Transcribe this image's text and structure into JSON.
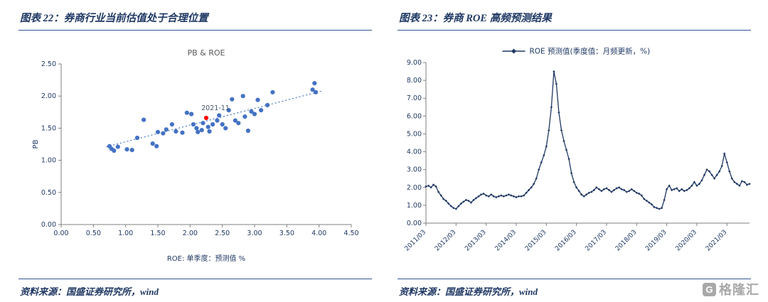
{
  "figures": [
    {
      "label": "图表 22：",
      "title": "券商行业当前估值处于合理位置",
      "source": "资料来源：国盛证券研究所，wind"
    },
    {
      "label": "图表 23：",
      "title": "券商 ROE 高频预测结果",
      "source": "资料来源：国盛证券研究所，wind"
    }
  ],
  "watermark": {
    "logo_letter": "G",
    "text": "格隆汇"
  },
  "chart_data": [
    {
      "type": "scatter",
      "title": "PB & ROE",
      "xlabel": "ROE: 单季度：预测值 %",
      "ylabel": "PB",
      "xlim": [
        0,
        4.5
      ],
      "ylim": [
        0,
        2.5
      ],
      "xticks": [
        0,
        0.5,
        1.0,
        1.5,
        2.0,
        2.5,
        3.0,
        3.5,
        4.0,
        4.5
      ],
      "yticks": [
        0,
        0.5,
        1.0,
        1.5,
        2.0,
        2.5
      ],
      "point_color": "#4472c4",
      "points": [
        [
          0.75,
          1.22
        ],
        [
          0.78,
          1.18
        ],
        [
          0.82,
          1.15
        ],
        [
          0.88,
          1.21
        ],
        [
          1.02,
          1.17
        ],
        [
          1.1,
          1.16
        ],
        [
          1.18,
          1.35
        ],
        [
          1.28,
          1.63
        ],
        [
          1.42,
          1.26
        ],
        [
          1.48,
          1.22
        ],
        [
          1.5,
          1.44
        ],
        [
          1.58,
          1.42
        ],
        [
          1.63,
          1.48
        ],
        [
          1.72,
          1.56
        ],
        [
          1.78,
          1.45
        ],
        [
          1.88,
          1.43
        ],
        [
          1.95,
          1.74
        ],
        [
          2.02,
          1.72
        ],
        [
          2.05,
          1.56
        ],
        [
          2.1,
          1.5
        ],
        [
          2.12,
          1.44
        ],
        [
          2.18,
          1.47
        ],
        [
          2.2,
          1.58
        ],
        [
          2.28,
          1.52
        ],
        [
          2.3,
          1.45
        ],
        [
          2.35,
          1.56
        ],
        [
          2.42,
          1.62
        ],
        [
          2.45,
          1.7
        ],
        [
          2.5,
          1.56
        ],
        [
          2.55,
          1.5
        ],
        [
          2.6,
          1.78
        ],
        [
          2.65,
          1.95
        ],
        [
          2.7,
          1.62
        ],
        [
          2.75,
          1.58
        ],
        [
          2.82,
          2.0
        ],
        [
          2.85,
          1.68
        ],
        [
          2.9,
          1.46
        ],
        [
          2.95,
          1.76
        ],
        [
          3.0,
          1.72
        ],
        [
          3.05,
          1.94
        ],
        [
          3.1,
          1.78
        ],
        [
          3.2,
          1.86
        ],
        [
          3.28,
          2.06
        ],
        [
          3.9,
          2.1
        ],
        [
          3.93,
          2.2
        ],
        [
          3.95,
          2.06
        ]
      ],
      "trendline": {
        "x1": 0.7,
        "y1": 1.21,
        "x2": 4.05,
        "y2": 2.08
      },
      "highlight": {
        "x": 2.25,
        "y": 1.66,
        "label": "2021-11",
        "color": "#ff0000"
      }
    },
    {
      "type": "line",
      "legend": "ROE 预测值(季度值：月频更新，%)",
      "line_color": "#203864",
      "ylim": [
        0,
        9
      ],
      "ytick_step": 1,
      "start_month": "2011/03",
      "x_labels": [
        "2011/03",
        "2012/03",
        "2013/03",
        "2014/03",
        "2015/03",
        "2016/03",
        "2017/03",
        "2018/03",
        "2019/03",
        "2020/03",
        "2021/03"
      ],
      "x_tick_indices": [
        0,
        12,
        24,
        36,
        48,
        60,
        72,
        84,
        96,
        108,
        120
      ],
      "values": [
        2.05,
        2.1,
        2.0,
        2.15,
        2.05,
        1.75,
        1.55,
        1.35,
        1.25,
        1.1,
        0.95,
        0.85,
        0.8,
        0.95,
        1.1,
        1.2,
        1.3,
        1.25,
        1.15,
        1.3,
        1.4,
        1.5,
        1.6,
        1.65,
        1.55,
        1.5,
        1.6,
        1.5,
        1.45,
        1.5,
        1.55,
        1.5,
        1.55,
        1.6,
        1.55,
        1.5,
        1.45,
        1.5,
        1.5,
        1.55,
        1.7,
        1.85,
        2.0,
        2.2,
        2.5,
        3.0,
        3.4,
        3.8,
        4.3,
        5.2,
        6.5,
        8.5,
        7.8,
        6.2,
        5.2,
        4.6,
        4.1,
        3.6,
        2.8,
        2.3,
        2.0,
        1.8,
        1.6,
        1.5,
        1.6,
        1.7,
        1.75,
        1.85,
        2.0,
        1.9,
        1.8,
        1.9,
        1.95,
        1.85,
        1.75,
        1.85,
        1.95,
        2.0,
        1.9,
        1.85,
        1.75,
        1.8,
        1.9,
        1.8,
        1.7,
        1.65,
        1.55,
        1.35,
        1.25,
        1.15,
        1.05,
        0.9,
        0.85,
        0.8,
        0.85,
        1.3,
        1.9,
        2.1,
        1.85,
        1.9,
        1.95,
        1.8,
        1.9,
        1.8,
        1.85,
        1.95,
        2.1,
        2.3,
        2.1,
        2.2,
        2.4,
        2.7,
        3.0,
        2.9,
        2.7,
        2.5,
        2.7,
        2.9,
        3.2,
        3.9,
        3.4,
        2.9,
        2.5,
        2.3,
        2.2,
        2.1,
        2.35,
        2.3,
        2.15,
        2.2
      ]
    }
  ]
}
